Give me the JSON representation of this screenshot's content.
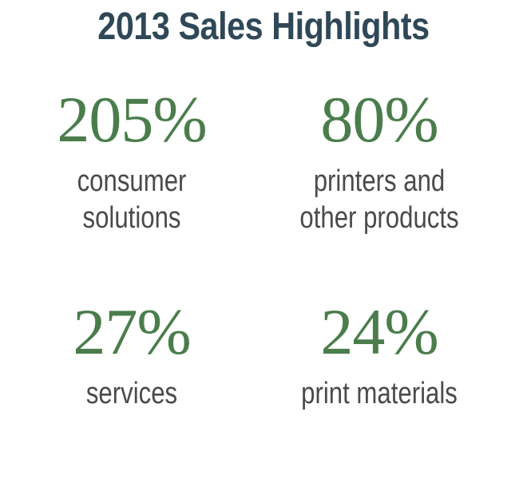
{
  "header": {
    "title": "2013 Sales Highlights"
  },
  "highlights": [
    {
      "value": "205%",
      "label": "consumer\nsolutions"
    },
    {
      "value": "80%",
      "label": "printers and\nother products"
    },
    {
      "value": "27%",
      "label": "services"
    },
    {
      "value": "24%",
      "label": "print materials"
    }
  ],
  "colors": {
    "title": "#2f4858",
    "value": "#4a7d4b",
    "label": "#4a4a4a",
    "background": "#ffffff"
  }
}
